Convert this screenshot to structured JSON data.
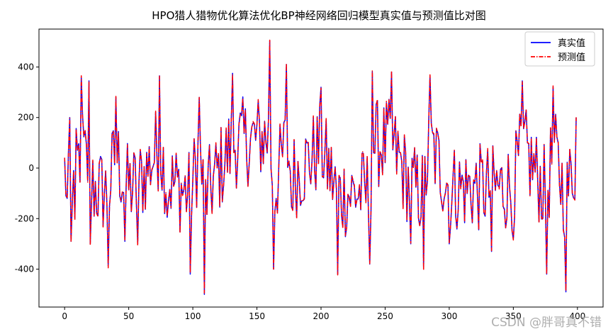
{
  "chart_data": {
    "type": "line",
    "title": "HPO猎人猎物优化算法优化BP神经网络回归模型真实值与预测值比对图",
    "xlabel": "",
    "ylabel": "",
    "xlim": [
      -20,
      420
    ],
    "ylim": [
      -550,
      550
    ],
    "xticks": [
      0,
      50,
      100,
      150,
      200,
      250,
      300,
      350,
      400
    ],
    "yticks": [
      -400,
      -200,
      0,
      200,
      400
    ],
    "legend_position": "top-right",
    "grid": false,
    "series": [
      {
        "name": "真实值",
        "color": "#0000ff",
        "style": "solid"
      },
      {
        "name": "预测值",
        "color": "#ff0000",
        "style": "dashdot"
      }
    ],
    "x_range": [
      0,
      399
    ],
    "n_points": 400,
    "keypoints": [
      {
        "x": 0,
        "y": 40
      },
      {
        "x": 1,
        "y": -110
      },
      {
        "x": 2,
        "y": -120
      },
      {
        "x": 4,
        "y": 200
      },
      {
        "x": 5,
        "y": -290
      },
      {
        "x": 8,
        "y": -200
      },
      {
        "x": 13,
        "y": 360
      },
      {
        "x": 18,
        "y": -50
      },
      {
        "x": 19,
        "y": 345
      },
      {
        "x": 20,
        "y": -300
      },
      {
        "x": 34,
        "y": -390
      },
      {
        "x": 40,
        "y": 280
      },
      {
        "x": 47,
        "y": -290
      },
      {
        "x": 57,
        "y": -300
      },
      {
        "x": 74,
        "y": 365
      },
      {
        "x": 80,
        "y": -195
      },
      {
        "x": 98,
        "y": -420
      },
      {
        "x": 105,
        "y": 280
      },
      {
        "x": 109,
        "y": -500
      },
      {
        "x": 131,
        "y": 375
      },
      {
        "x": 160,
        "y": 505
      },
      {
        "x": 163,
        "y": -400
      },
      {
        "x": 173,
        "y": 410
      },
      {
        "x": 177,
        "y": -155
      },
      {
        "x": 200,
        "y": 320
      },
      {
        "x": 213,
        "y": -420
      },
      {
        "x": 238,
        "y": -380
      },
      {
        "x": 240,
        "y": 380
      },
      {
        "x": 255,
        "y": 380
      },
      {
        "x": 270,
        "y": -300
      },
      {
        "x": 280,
        "y": -400
      },
      {
        "x": 285,
        "y": 365
      },
      {
        "x": 300,
        "y": -300
      },
      {
        "x": 333,
        "y": -330
      },
      {
        "x": 350,
        "y": -280
      },
      {
        "x": 357,
        "y": 345
      },
      {
        "x": 376,
        "y": -420
      },
      {
        "x": 381,
        "y": 320
      },
      {
        "x": 391,
        "y": -490
      },
      {
        "x": 399,
        "y": 200
      }
    ]
  },
  "watermark": "CSDN @胖哥真不错"
}
